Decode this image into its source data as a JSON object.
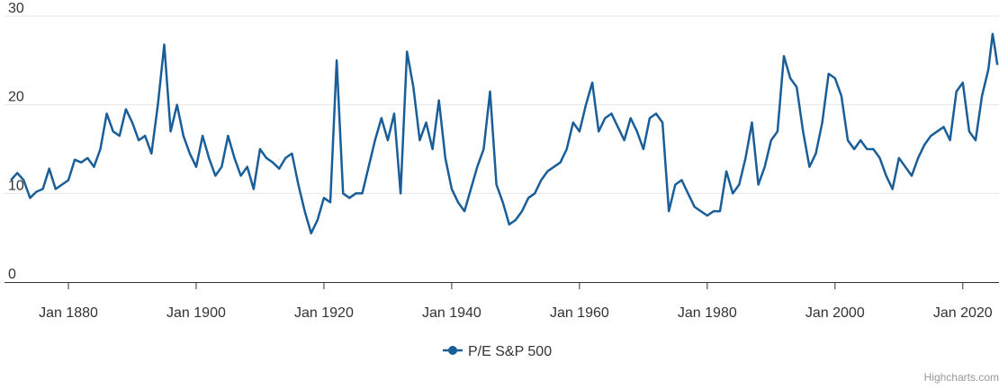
{
  "chart_data": {
    "type": "line",
    "x": [
      "1871-01",
      "1872-01",
      "1873-01",
      "1874-01",
      "1875-01",
      "1876-01",
      "1877-01",
      "1878-01",
      "1879-01",
      "1880-01",
      "1881-01",
      "1882-01",
      "1883-01",
      "1884-01",
      "1885-01",
      "1886-01",
      "1887-01",
      "1888-01",
      "1889-01",
      "1890-01",
      "1891-01",
      "1892-01",
      "1893-01",
      "1894-01",
      "1895-01",
      "1896-01",
      "1897-01",
      "1898-01",
      "1899-01",
      "1900-01",
      "1901-01",
      "1902-01",
      "1903-01",
      "1904-01",
      "1905-01",
      "1906-01",
      "1907-01",
      "1908-01",
      "1909-01",
      "1910-01",
      "1911-01",
      "1912-01",
      "1913-01",
      "1914-01",
      "1915-01",
      "1916-01",
      "1917-01",
      "1918-01",
      "1919-01",
      "1920-01",
      "1921-01",
      "1922-01",
      "1923-01",
      "1924-01",
      "1925-01",
      "1926-01",
      "1927-01",
      "1928-01",
      "1929-01",
      "1930-01",
      "1931-01",
      "1932-01",
      "1933-01",
      "1934-01",
      "1935-01",
      "1936-01",
      "1937-01",
      "1938-01",
      "1939-01",
      "1940-01",
      "1941-01",
      "1942-01",
      "1943-01",
      "1944-01",
      "1945-01",
      "1946-01",
      "1947-01",
      "1948-01",
      "1949-01",
      "1950-01",
      "1951-01",
      "1952-01",
      "1953-01",
      "1954-01",
      "1955-01",
      "1956-01",
      "1957-01",
      "1958-01",
      "1959-01",
      "1960-01",
      "1961-01",
      "1962-01",
      "1963-01",
      "1964-01",
      "1965-01",
      "1966-01",
      "1967-01",
      "1968-01",
      "1969-01",
      "1970-01",
      "1971-01",
      "1972-01",
      "1973-01",
      "1974-01",
      "1975-01",
      "1976-01",
      "1977-01",
      "1978-01",
      "1979-01",
      "1980-01",
      "1981-01",
      "1982-01",
      "1983-01",
      "1984-01",
      "1985-01",
      "1986-01",
      "1987-01",
      "1988-01",
      "1989-01",
      "1990-01",
      "1991-01",
      "1992-01",
      "1993-01",
      "1994-01",
      "1995-01",
      "1996-01",
      "1997-01",
      "1998-01",
      "1999-01",
      "2000-01",
      "2001-01",
      "2002-01",
      "2003-01",
      "2004-01",
      "2005-01",
      "2006-01",
      "2007-01",
      "2008-01",
      "2009-01",
      "2010-01",
      "2011-01",
      "2012-01",
      "2013-01",
      "2014-01",
      "2015-01",
      "2016-01",
      "2017-01",
      "2018-01",
      "2019-01",
      "2020-01",
      "2021-01",
      "2022-01",
      "2023-01",
      "2024-01",
      "2024-09",
      "2025-01",
      "2025-06"
    ],
    "series": [
      {
        "name": "P/E S&P 500",
        "color": "#1a5e99",
        "values": [
          11.5,
          12.3,
          11.5,
          9.5,
          10.2,
          10.5,
          12.8,
          10.5,
          11,
          11.5,
          13.8,
          13.5,
          14,
          13,
          15,
          19,
          17,
          16.5,
          19.5,
          18,
          16,
          16.5,
          14.5,
          20,
          26.8,
          17,
          20,
          16.5,
          14.5,
          13,
          16.5,
          14,
          12,
          13,
          16.5,
          14,
          12,
          13,
          10.5,
          15,
          14,
          13.5,
          12.8,
          14,
          14.5,
          11,
          8,
          5.5,
          7,
          9.5,
          9,
          25,
          10,
          9.5,
          10,
          10,
          13,
          16,
          18.5,
          16,
          19,
          10,
          26,
          22,
          16,
          18,
          15,
          20.5,
          14,
          10.5,
          9,
          8,
          10.5,
          13,
          15,
          21.5,
          11,
          9,
          6.5,
          7,
          8,
          9.5,
          10,
          11.5,
          12.5,
          13,
          13.5,
          15,
          18,
          17,
          20,
          22.5,
          17,
          18.5,
          19,
          17.5,
          16,
          18.5,
          17,
          15,
          18.5,
          19,
          18,
          8,
          11,
          11.5,
          10,
          8.5,
          8,
          7.5,
          8,
          8,
          12.5,
          10,
          11,
          14,
          18,
          11,
          13,
          16,
          17,
          25.5,
          23,
          22,
          17,
          13,
          14.5,
          18,
          23.5,
          23,
          21,
          16,
          15,
          16,
          15,
          15,
          14,
          12,
          10.5,
          14,
          13,
          12,
          14,
          15.5,
          16.5,
          17,
          17.5,
          16,
          21.5,
          22.5,
          17,
          16,
          21,
          24,
          28,
          26.5,
          24.5
        ]
      }
    ],
    "xlim": [
      "1870-01",
      "2025-09"
    ],
    "xticks": [
      {
        "value": "1880-01",
        "label": "Jan 1880"
      },
      {
        "value": "1900-01",
        "label": "Jan 1900"
      },
      {
        "value": "1920-01",
        "label": "Jan 1920"
      },
      {
        "value": "1940-01",
        "label": "Jan 1940"
      },
      {
        "value": "1960-01",
        "label": "Jan 1960"
      },
      {
        "value": "1980-01",
        "label": "Jan 1980"
      },
      {
        "value": "2000-01",
        "label": "Jan 2000"
      },
      {
        "value": "2020-01",
        "label": "Jan 2020"
      }
    ],
    "ylim": [
      0,
      30
    ],
    "yticks": [
      0,
      10,
      20,
      30
    ],
    "grid": true,
    "legend": "bottom",
    "credits": "Highcharts.com"
  }
}
